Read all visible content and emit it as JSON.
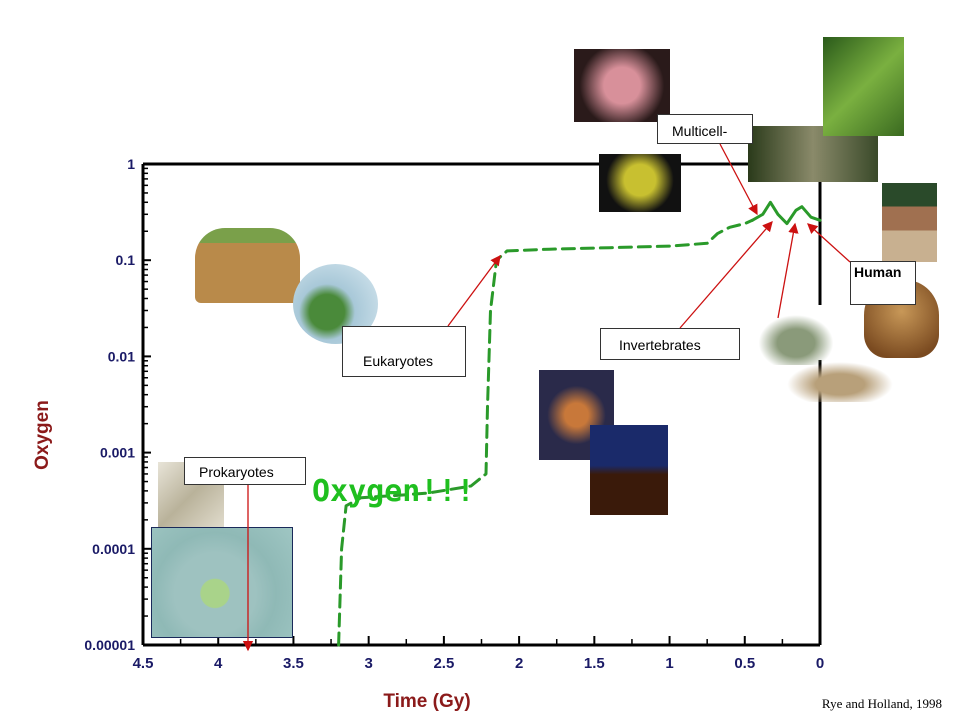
{
  "chart_data": {
    "type": "line",
    "xlabel": "Time  (Gy)",
    "ylabel": "Oxygen",
    "x_ticks": [
      "4.5",
      "4",
      "3.5",
      "3",
      "2.5",
      "2",
      "1.5",
      "1",
      "0.5",
      "0"
    ],
    "y_ticks": [
      "1",
      "0.1",
      "0.01",
      "0.001",
      "0.0001",
      "0.00001"
    ],
    "xlim": [
      4.5,
      0
    ],
    "ylim": [
      1e-05,
      1
    ],
    "y_scale": "log",
    "series": [
      {
        "style": "dashed",
        "color": "#2a9a2a",
        "points": [
          [
            3.2,
            1e-05
          ],
          [
            3.18,
            0.0001
          ],
          [
            3.15,
            0.00028
          ],
          [
            3.05,
            0.00034
          ],
          [
            2.8,
            0.00036
          ],
          [
            2.6,
            0.00038
          ],
          [
            2.32,
            0.00045
          ],
          [
            2.22,
            0.0006
          ],
          [
            2.21,
            0.003
          ],
          [
            2.19,
            0.03
          ],
          [
            2.15,
            0.1
          ],
          [
            2.08,
            0.125
          ],
          [
            1.8,
            0.13
          ],
          [
            1.4,
            0.135
          ],
          [
            1.0,
            0.14
          ],
          [
            0.75,
            0.15
          ],
          [
            0.68,
            0.19
          ],
          [
            0.6,
            0.22
          ],
          [
            0.5,
            0.24
          ],
          [
            0.45,
            0.26
          ]
        ]
      },
      {
        "style": "solid",
        "color": "#2a9a2a",
        "points": [
          [
            0.45,
            0.26
          ],
          [
            0.38,
            0.3
          ],
          [
            0.33,
            0.4
          ],
          [
            0.28,
            0.3
          ],
          [
            0.22,
            0.24
          ],
          [
            0.16,
            0.33
          ],
          [
            0.12,
            0.36
          ],
          [
            0.06,
            0.28
          ],
          [
            0,
            0.26
          ]
        ]
      }
    ],
    "annotations": [
      {
        "text": "Prokaryotes",
        "x": 3.8
      },
      {
        "text": "Eukaryotes",
        "x": 2.15
      },
      {
        "text": "Invertebrates",
        "x": 0.33
      },
      {
        "text": "Multicell-",
        "x": 0.45
      },
      {
        "text": "Human",
        "x": 0.06
      },
      {
        "text": "Oxygen!!!"
      }
    ]
  },
  "labels": {
    "prokaryotes": "Prokaryotes",
    "eukaryotes": "Eukaryotes",
    "invertebrates": "Invertebrates",
    "multicell": "Multicell-",
    "human": "Human",
    "oxygen": "Oxygen!!!"
  },
  "credit": "Rye and Holland, 1998",
  "colors": {
    "curve": "#2a9a2a",
    "axis_text": "#1a1a66",
    "axis_label": "#8b1a1a",
    "arrow": "#cc1111"
  }
}
